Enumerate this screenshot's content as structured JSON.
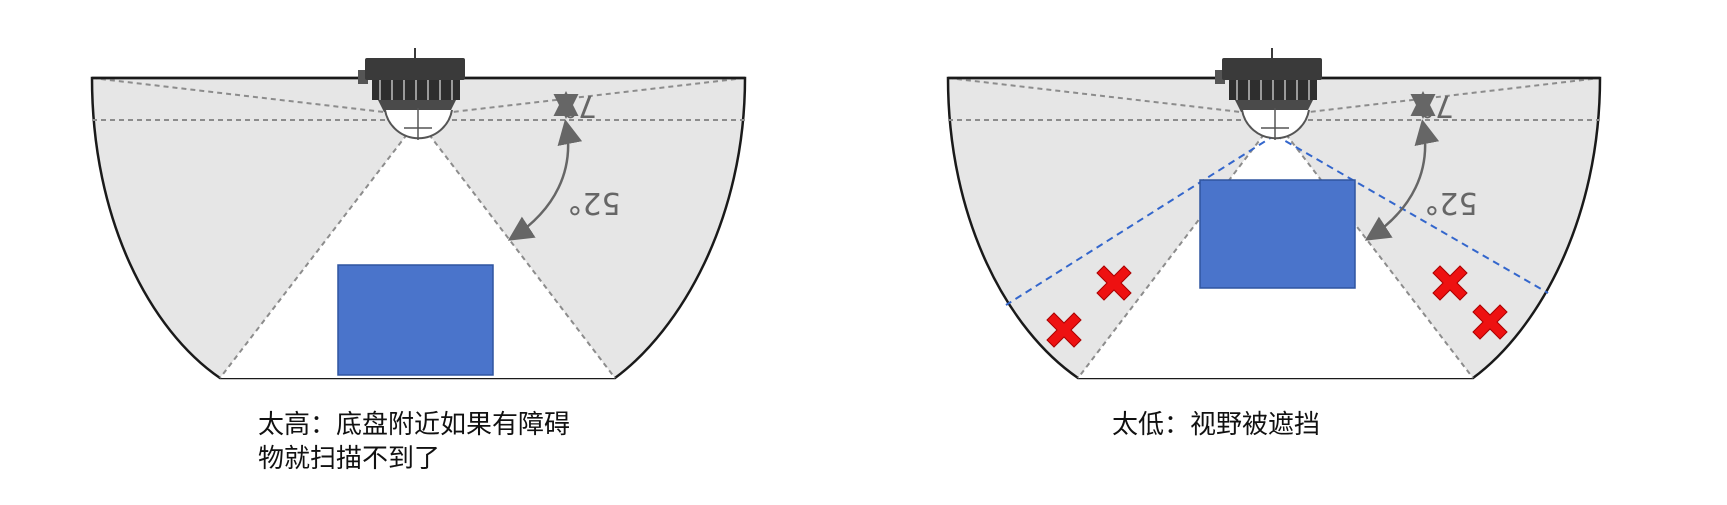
{
  "colors": {
    "region_fill": "#e6e6e6",
    "outline": "#1a1a1a",
    "beam": "#8c8c8c",
    "obstacle": "#4a74cb",
    "obstacle_edge": "#2f55a0",
    "blocked_line": "#3366cc",
    "cross": "#ee1111",
    "arrow": "#666666",
    "sensor_body": "#3a3a3a"
  },
  "icons": {
    "sensor": "lidar-sensor-icon",
    "blocked_mark": "red-x-icon"
  },
  "panels": [
    {
      "id": "too-high",
      "angle_small": "7°",
      "angle_large": "52°",
      "caption_lines": [
        "太高：底盘附近如果有障碍",
        "物就扫描不到了"
      ]
    },
    {
      "id": "too-low",
      "angle_small": "7°",
      "angle_large": "52°",
      "caption_lines": [
        "太低：视野被遮挡"
      ]
    }
  ]
}
